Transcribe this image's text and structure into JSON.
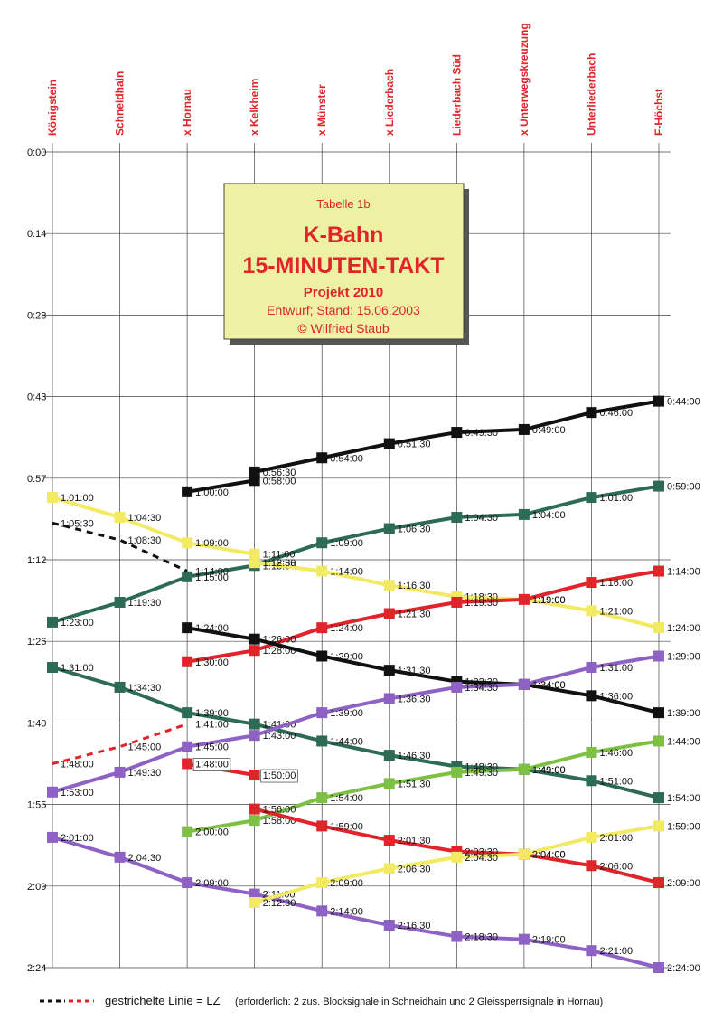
{
  "chart_data": {
    "type": "line",
    "table_label": "Tabelle 1b",
    "title": "K-Bahn",
    "subtitle": "15-MINUTEN-TAKT",
    "project": "Projekt 2010",
    "draft": "Entwurf; Stand: 15.06.2003",
    "author": "© Wilfried Staub",
    "categories": [
      "Königstein",
      "Schneidhain",
      "x Hornau",
      "x Kelkheim",
      "x Münster",
      "x Liederbach",
      "Liederbach Süd",
      "x Unterwegskreuzung",
      "Unterliederbach",
      "F-Höchst"
    ],
    "ylim": [
      0,
      144
    ],
    "y_inverted": true,
    "yticks": [
      {
        "value": 0,
        "label": "0:00"
      },
      {
        "value": 14.4,
        "label": "0:14"
      },
      {
        "value": 28.8,
        "label": "0:28"
      },
      {
        "value": 43.2,
        "label": "0:43"
      },
      {
        "value": 57.6,
        "label": "0:57"
      },
      {
        "value": 72,
        "label": "1:12"
      },
      {
        "value": 86.4,
        "label": "1:26"
      },
      {
        "value": 100.8,
        "label": "1:40"
      },
      {
        "value": 115.2,
        "label": "1:55"
      },
      {
        "value": 129.6,
        "label": "2:09"
      },
      {
        "value": 144,
        "label": "2:24"
      }
    ],
    "grid": true,
    "legend_text": "gestrichelte Linie = LZ",
    "legend_note": "(erforderlich: 2 zus. Blocksignale in Schneidhain und 2 Gleissperrsignale in Hornau)",
    "series": [
      {
        "color": "#111111",
        "x": [
          "x Hornau",
          "x Kelkheim",
          "x Kelkheim",
          "x Münster",
          "x Liederbach",
          "Liederbach Süd",
          "x Unterwegskreuzung",
          "Unterliederbach",
          "F-Höchst"
        ],
        "values": [
          60,
          58,
          56.5,
          54,
          51.5,
          49.5,
          49,
          46,
          44
        ],
        "value_labels": [
          "1:00:00",
          "0:58:00",
          "0:56:30",
          "0:54:00",
          "0:51:30",
          "0:49:30",
          "0:49:00",
          "0:46:00",
          "0:44:00"
        ]
      },
      {
        "color": "#2e6b55",
        "x": [
          "Königstein",
          "Schneidhain",
          "x Hornau",
          "x Kelkheim",
          "x Münster",
          "x Liederbach",
          "Liederbach Süd",
          "x Unterwegskreuzung",
          "Unterliederbach",
          "F-Höchst"
        ],
        "values": [
          83,
          79.5,
          75,
          73,
          69,
          66.5,
          64.5,
          64,
          61,
          59
        ],
        "value_labels": [
          "1:23:00",
          "1:19:30",
          "1:15:00",
          "1:13:00",
          "1:09:00",
          "1:06:30",
          "1:04:30",
          "1:04:00",
          "1:01:00",
          "0:59:00"
        ]
      },
      {
        "color": "#f2ea62",
        "x": [
          "Königstein",
          "Schneidhain",
          "x Hornau",
          "x Kelkheim",
          "x Kelkheim",
          "x Münster",
          "x Liederbach",
          "Liederbach Süd",
          "x Unterwegskreuzung",
          "Unterliederbach",
          "F-Höchst"
        ],
        "values": [
          61,
          64.5,
          69,
          71,
          72.5,
          74,
          76.5,
          78.5,
          79,
          81,
          84
        ],
        "value_labels": [
          "1:01:00",
          "1:04:30",
          "1:09:00",
          "1:11:00",
          "1:12:30",
          "1:14:00",
          "1:16:30",
          "1:18:30",
          "1:19:00",
          "1:21:00",
          "1:24:00"
        ]
      },
      {
        "color": "#e0242a",
        "x": [
          "x Hornau",
          "x Kelkheim",
          "x Münster",
          "x Liederbach",
          "Liederbach Süd",
          "x Unterwegskreuzung",
          "Unterliederbach",
          "F-Höchst"
        ],
        "values": [
          90,
          88,
          84,
          81.5,
          79.5,
          79,
          76,
          74
        ],
        "value_labels": [
          "1:30:00",
          "1:28:00",
          "1:24:00",
          "1:21:30",
          "1:19:30",
          "1:19:00",
          "1:16:00",
          "1:14:00"
        ]
      },
      {
        "color": "#111111",
        "x": [
          "x Hornau",
          "x Kelkheim",
          "x Münster",
          "x Liederbach",
          "Liederbach Süd",
          "x Unterwegskreuzung",
          "Unterliederbach",
          "F-Höchst"
        ],
        "values": [
          84,
          86,
          89,
          91.5,
          93.5,
          94,
          96,
          99
        ],
        "value_labels": [
          "1:24:00",
          "1:26:00",
          "1:29:00",
          "1:31:30",
          "1:33:30",
          "1:34:00",
          "1:36:00",
          "1:39:00"
        ]
      },
      {
        "color": "#2e6b55",
        "x": [
          "Königstein",
          "Schneidhain",
          "x Hornau",
          "x Kelkheim",
          "x Münster",
          "x Liederbach",
          "Liederbach Süd",
          "x Unterwegskreuzung",
          "Unterliederbach",
          "F-Höchst"
        ],
        "values": [
          91,
          94.5,
          99,
          101,
          104,
          106.5,
          108.5,
          109,
          111,
          114
        ],
        "value_labels": [
          "1:31:00",
          "1:34:30",
          "1:39:00",
          "1:41:00",
          "1:44:00",
          "1:46:30",
          "1:48:30",
          "1:49:00",
          "1:51:00",
          "1:54:00"
        ]
      },
      {
        "color": "#111111",
        "dashed": true,
        "x": [
          "Königstein",
          "Schneidhain",
          "x Hornau"
        ],
        "values": [
          65.5,
          68.5,
          74
        ],
        "value_labels": [
          "1:05:30",
          "1:08:30",
          "1:14:00"
        ]
      },
      {
        "color": "#e0242a",
        "dashed": true,
        "x": [
          "Königstein",
          "Schneidhain",
          "x Hornau"
        ],
        "values": [
          108,
          105,
          101
        ],
        "value_labels": [
          "1:48:00",
          "1:45:00",
          "1:41:00"
        ]
      },
      {
        "color": "#8e62c4",
        "x": [
          "Königstein",
          "Schneidhain",
          "x Hornau",
          "x Kelkheim",
          "x Münster",
          "x Liederbach",
          "Liederbach Süd",
          "x Unterwegskreuzung",
          "Unterliederbach",
          "F-Höchst"
        ],
        "values": [
          113,
          109.5,
          105,
          103,
          99,
          96.5,
          94.5,
          94,
          91,
          89
        ],
        "value_labels": [
          "1:53:00",
          "1:49:30",
          "1:45:00",
          "1:43:00",
          "1:39:00",
          "1:36:30",
          "1:34:30",
          "1:34:00",
          "1:31:00",
          "1:29:00"
        ]
      },
      {
        "color": "#e0242a",
        "boxed_labels": true,
        "x": [
          "x Hornau",
          "x Kelkheim"
        ],
        "values": [
          108,
          110
        ],
        "value_labels": [
          "1:48:00",
          "1:50:00"
        ]
      },
      {
        "color": "#7ec043",
        "x": [
          "x Hornau",
          "x Kelkheim",
          "x Münster",
          "x Liederbach",
          "Liederbach Süd",
          "x Unterwegskreuzung",
          "Unterliederbach",
          "F-Höchst"
        ],
        "values": [
          120,
          118,
          114,
          111.5,
          109.5,
          109,
          106,
          104
        ],
        "value_labels": [
          "2:00:00",
          "1:58:00",
          "1:54:00",
          "1:51:30",
          "1:49:30",
          "1:49:00",
          "1:46:00",
          "1:44:00"
        ]
      },
      {
        "color": "#e0242a",
        "x": [
          "x Kelkheim",
          "x Münster",
          "x Liederbach",
          "Liederbach Süd",
          "x Unterwegskreuzung",
          "Unterliederbach",
          "F-Höchst"
        ],
        "values": [
          116,
          119,
          121.5,
          123.5,
          124,
          126,
          129
        ],
        "value_labels": [
          "1:56:00",
          "1:59:00",
          "2:01:30",
          "2:03:30",
          "2:04:00",
          "2:06:00",
          "2:09:00"
        ]
      },
      {
        "color": "#8e62c4",
        "x": [
          "Königstein",
          "Schneidhain",
          "x Hornau",
          "x Kelkheim",
          "x Münster",
          "x Liederbach",
          "Liederbach Süd",
          "x Unterwegskreuzung",
          "Unterliederbach",
          "F-Höchst"
        ],
        "values": [
          121,
          124.5,
          129,
          131,
          134,
          136.5,
          138.5,
          139,
          141,
          144
        ],
        "value_labels": [
          "2:01:00",
          "2:04:30",
          "2:09:00",
          "2:11:00",
          "2:14:00",
          "2:16:30",
          "2:18:30",
          "2:19:00",
          "2:21:00",
          "2:24:00"
        ]
      },
      {
        "color": "#f2ea62",
        "x": [
          "x Kelkheim",
          "x Münster",
          "x Liederbach",
          "Liederbach Süd",
          "x Unterwegskreuzung",
          "Unterliederbach",
          "F-Höchst"
        ],
        "values": [
          132.5,
          129,
          126.5,
          124.5,
          124,
          121,
          119
        ],
        "value_labels": [
          "2:12:30",
          "2:09:00",
          "2:06:30",
          "2:04:30",
          "2:04:00",
          "2:01:00",
          "1:59:00"
        ]
      }
    ]
  }
}
